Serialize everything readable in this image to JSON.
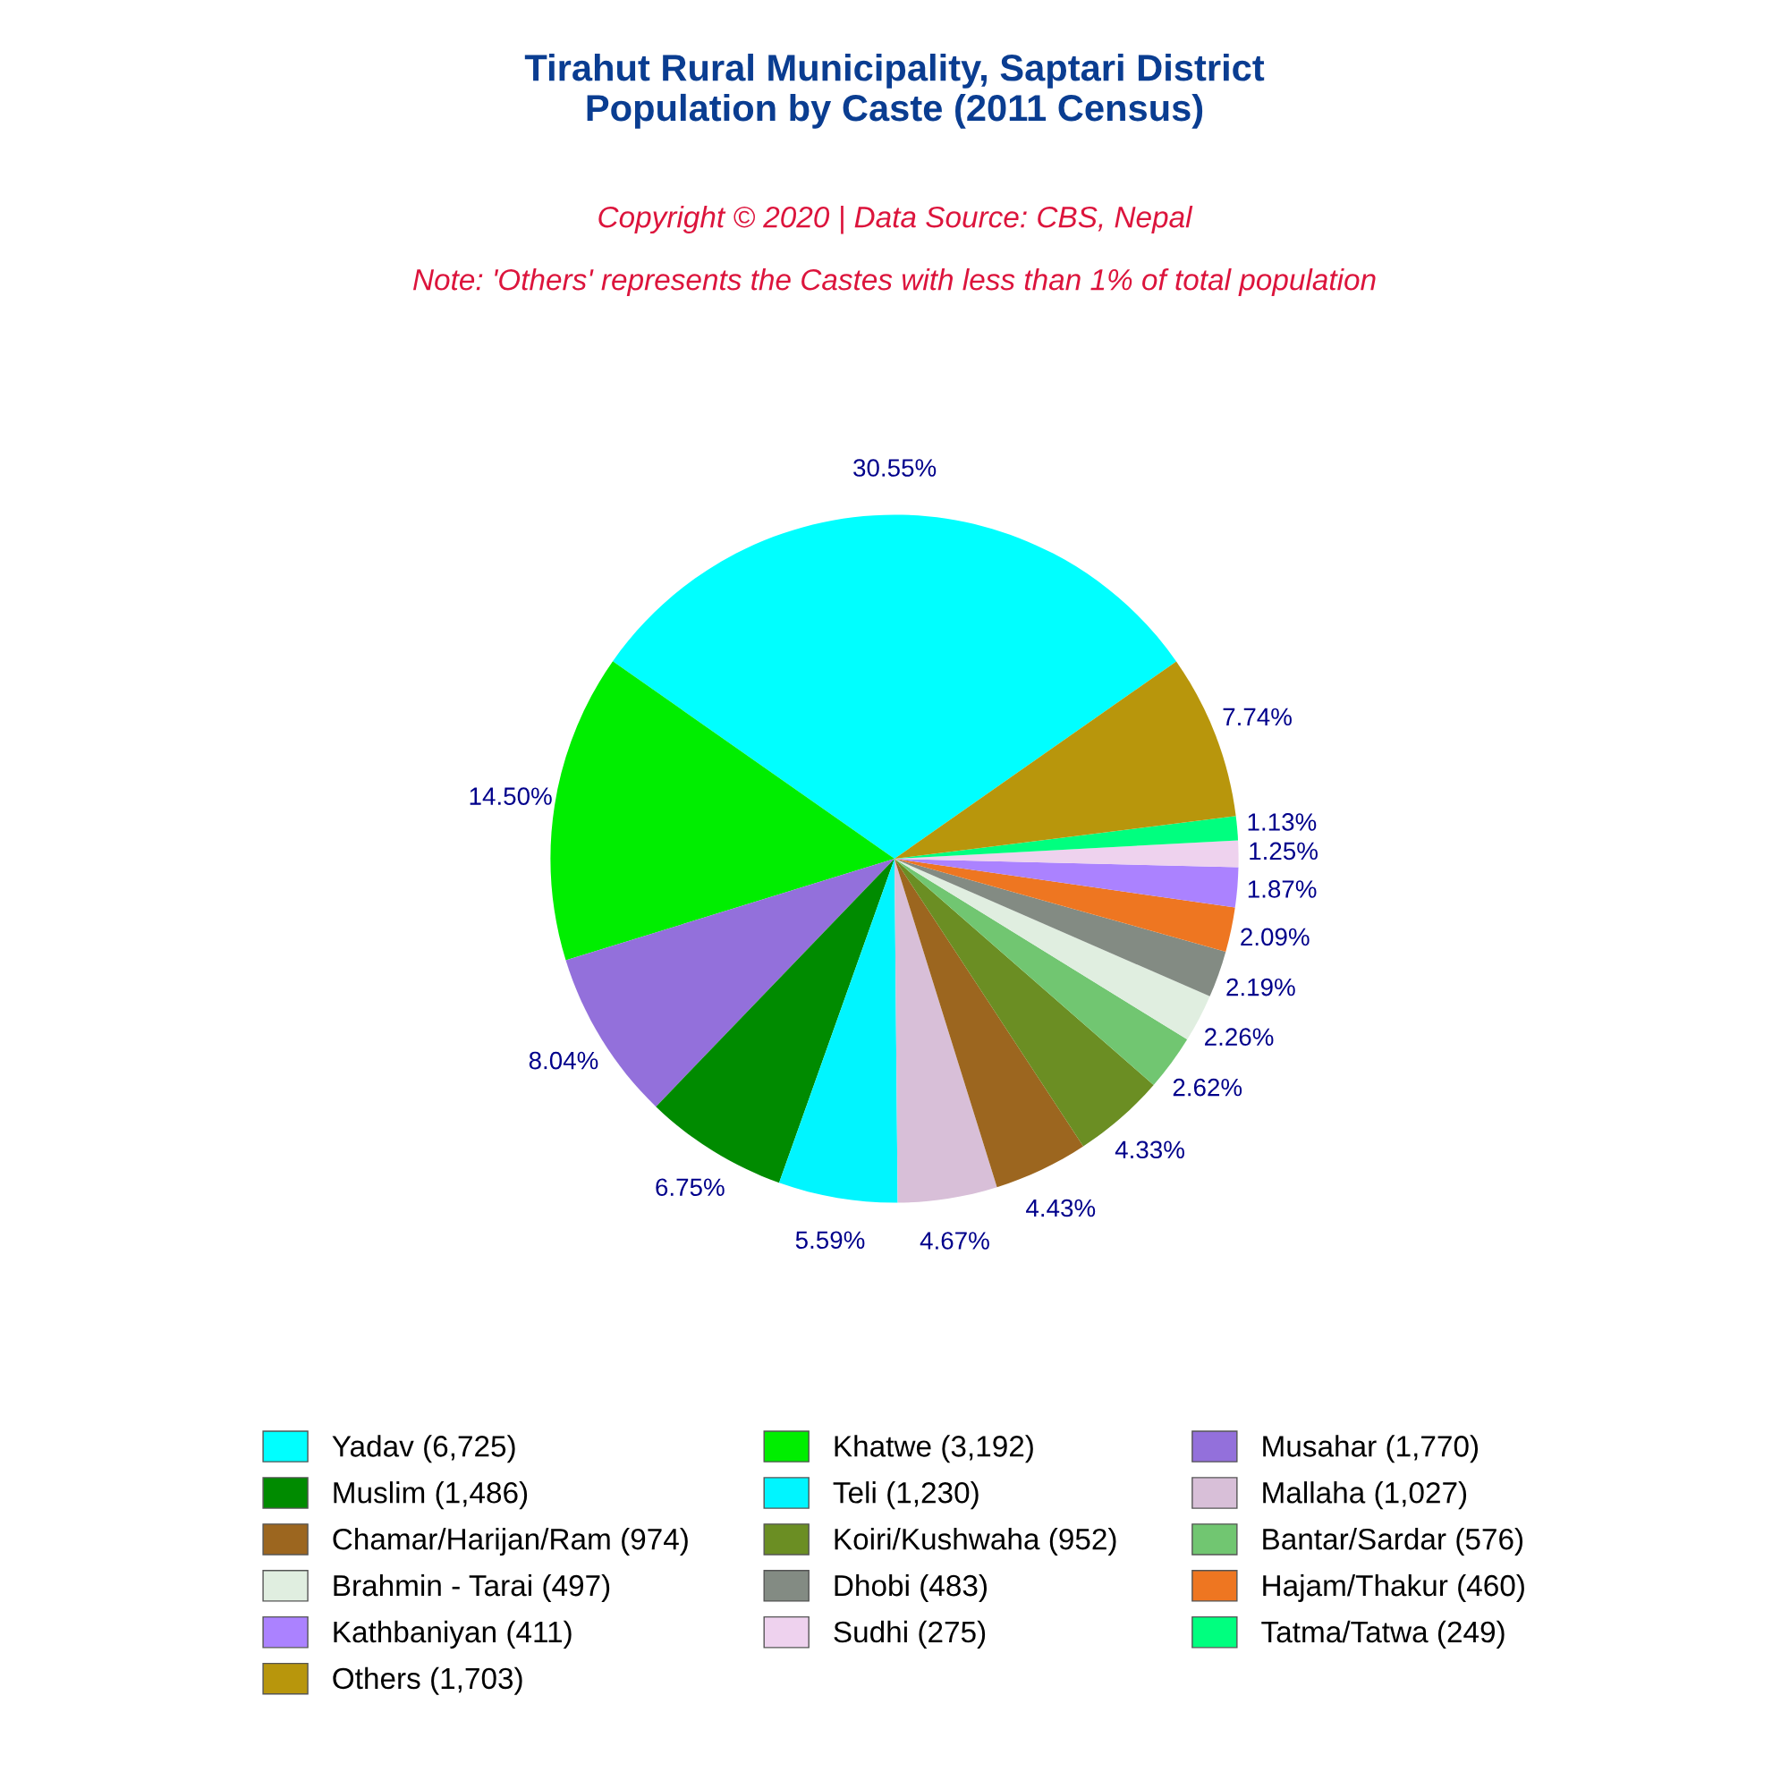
{
  "chart_data": {
    "type": "pie",
    "title": "Tirahut Rural Municipality, Saptari District\nPopulation by Caste (2011 Census)",
    "subtitle": "Copyright © 2020 | Data Source: CBS, Nepal",
    "annotations": [
      "Note: 'Others' represents the Castes with less than 1% of total population"
    ],
    "categories": [
      "Yadav (6,725)",
      "Khatwe (3,192)",
      "Musahar (1,770)",
      "Muslim (1,486)",
      "Teli (1,230)",
      "Mallaha (1,027)",
      "Chamar/Harijan/Ram (974)",
      "Koiri/Kushwaha (952)",
      "Bantar/Sardar (576)",
      "Brahmin - Tarai (497)",
      "Dhobi (483)",
      "Hajam/Thakur (460)",
      "Kathbaniyan (411)",
      "Sudhi (275)",
      "Tatma/Tatwa (249)",
      "Others (1,703)"
    ],
    "values": [
      30.55,
      14.5,
      8.04,
      6.75,
      5.59,
      4.67,
      4.43,
      4.33,
      2.62,
      2.26,
      2.19,
      2.09,
      1.87,
      1.25,
      1.13,
      7.74
    ],
    "value_labels": [
      "30.55%",
      "14.50%",
      "8.04%",
      "6.75%",
      "5.59%",
      "4.67%",
      "4.43%",
      "4.33%",
      "2.62%",
      "2.26%",
      "2.19%",
      "2.09%",
      "1.87%",
      "1.25%",
      "1.13%",
      "7.74%"
    ],
    "colors": [
      "#00ffff",
      "#00ee00",
      "#9370db",
      "#008b00",
      "#00f5ff",
      "#d8bfd8",
      "#9c661f",
      "#6b8e23",
      "#71c671",
      "#e0eee0",
      "#838b83",
      "#ee7621",
      "#ab82ff",
      "#eed2ee",
      "#00ff7f",
      "#b8960c"
    ],
    "legend": "bottom"
  }
}
